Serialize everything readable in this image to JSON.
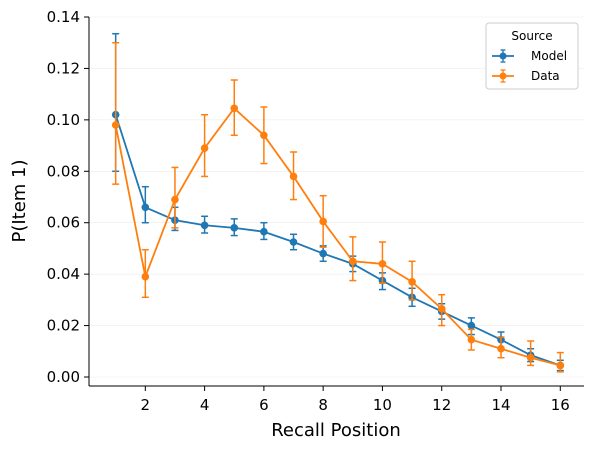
{
  "chart_data": {
    "type": "line",
    "xlabel": "Recall Position",
    "ylabel": "P(Item 1)",
    "xlim": [
      0.1,
      16.8
    ],
    "ylim": [
      -0.0035,
      0.14
    ],
    "x_ticks": [
      2,
      4,
      6,
      8,
      10,
      12,
      14,
      16
    ],
    "y_ticks": [
      0.0,
      0.02,
      0.04,
      0.06,
      0.08,
      0.1,
      0.12,
      0.14
    ],
    "y_tick_labels": [
      "0.00",
      "0.02",
      "0.04",
      "0.06",
      "0.08",
      "0.10",
      "0.12",
      "0.14"
    ],
    "x": [
      1,
      2,
      3,
      4,
      5,
      6,
      7,
      8,
      9,
      10,
      11,
      12,
      13,
      14,
      15,
      16
    ],
    "grid": "horizontal-faint",
    "legend": {
      "title": "Source",
      "placement": "top-right"
    },
    "series": [
      {
        "name": "Model",
        "color": "#1f77b4",
        "values": [
          0.102,
          0.066,
          0.061,
          0.059,
          0.058,
          0.0565,
          0.0525,
          0.048,
          0.044,
          0.0375,
          0.031,
          0.0255,
          0.02,
          0.0145,
          0.0085,
          0.0045
        ],
        "err_low": [
          0.08,
          0.06,
          0.057,
          0.056,
          0.055,
          0.0535,
          0.0495,
          0.045,
          0.041,
          0.034,
          0.0275,
          0.0225,
          0.0165,
          0.0115,
          0.006,
          0.0025
        ],
        "err_high": [
          0.1335,
          0.074,
          0.066,
          0.0625,
          0.0615,
          0.06,
          0.0555,
          0.051,
          0.047,
          0.0405,
          0.0345,
          0.0285,
          0.023,
          0.0175,
          0.011,
          0.0065
        ]
      },
      {
        "name": "Data",
        "color": "#ff7f0e",
        "values": [
          0.098,
          0.039,
          0.069,
          0.089,
          0.1045,
          0.094,
          0.078,
          0.0605,
          0.045,
          0.044,
          0.037,
          0.0265,
          0.0145,
          0.011,
          0.0075,
          0.0045
        ],
        "err_low": [
          0.075,
          0.031,
          0.058,
          0.078,
          0.094,
          0.083,
          0.069,
          0.0505,
          0.0375,
          0.0365,
          0.03,
          0.02,
          0.0105,
          0.0075,
          0.0045,
          0.002
        ],
        "err_high": [
          0.13,
          0.0495,
          0.0815,
          0.102,
          0.1155,
          0.105,
          0.0875,
          0.0705,
          0.0545,
          0.0525,
          0.045,
          0.032,
          0.0185,
          0.0155,
          0.014,
          0.0095
        ]
      }
    ]
  }
}
